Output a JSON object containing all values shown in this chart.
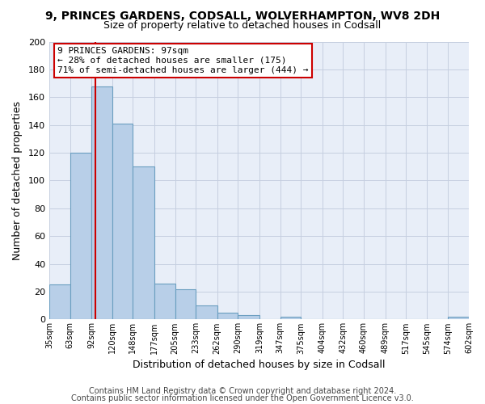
{
  "title_line1": "9, PRINCES GARDENS, CODSALL, WOLVERHAMPTON, WV8 2DH",
  "title_line2": "Size of property relative to detached houses in Codsall",
  "xlabel": "Distribution of detached houses by size in Codsall",
  "ylabel": "Number of detached properties",
  "footer_line1": "Contains HM Land Registry data © Crown copyright and database right 2024.",
  "footer_line2": "Contains public sector information licensed under the Open Government Licence v3.0.",
  "annotation_line1": "9 PRINCES GARDENS: 97sqm",
  "annotation_line2": "← 28% of detached houses are smaller (175)",
  "annotation_line3": "71% of semi-detached houses are larger (444) →",
  "bar_edges": [
    35,
    63,
    92,
    120,
    148,
    177,
    205,
    233,
    262,
    290,
    319,
    347,
    375,
    404,
    432,
    460,
    489,
    517,
    545,
    574,
    602
  ],
  "bar_heights": [
    25,
    120,
    168,
    141,
    110,
    26,
    22,
    10,
    5,
    3,
    0,
    2,
    0,
    0,
    0,
    0,
    0,
    0,
    0,
    2
  ],
  "bar_color": "#b8cfe8",
  "bar_edge_color": "#6a9ec0",
  "red_line_x": 97,
  "ylim": [
    0,
    200
  ],
  "yticks": [
    0,
    20,
    40,
    60,
    80,
    100,
    120,
    140,
    160,
    180,
    200
  ],
  "fig_background": "#ffffff",
  "plot_background": "#e8eef8",
  "grid_color": "#c5cfe0",
  "annotation_box_facecolor": "#ffffff",
  "annotation_box_edgecolor": "#cc0000",
  "red_line_color": "#cc0000",
  "title1_fontsize": 10,
  "title2_fontsize": 9,
  "footer_fontsize": 7
}
